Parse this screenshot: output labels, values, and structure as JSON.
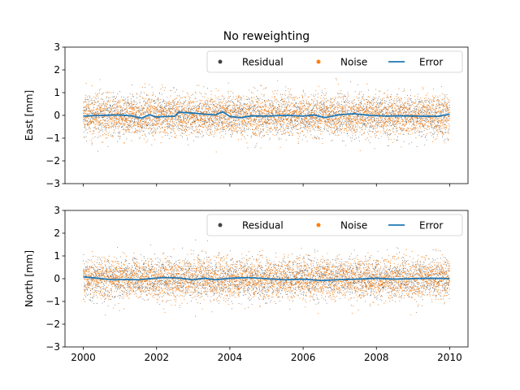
{
  "figure": {
    "title": "No reweighting"
  },
  "chart_data": [
    {
      "type": "scatter",
      "title": "No reweighting",
      "ylabel": "East [mm]",
      "xlabel": "",
      "xlim": [
        1999.5,
        2010.5
      ],
      "ylim": [
        -3,
        3
      ],
      "x_ticks": [
        "2000",
        "2002",
        "2004",
        "2006",
        "2008",
        "2010"
      ],
      "x_tick_values": [
        2000,
        2002,
        2004,
        2006,
        2008,
        2010
      ],
      "x_tick_labels_visible": false,
      "y_ticks": [
        "−3",
        "−2",
        "−1",
        "0",
        "1",
        "2",
        "3"
      ],
      "y_tick_values": [
        -3,
        -2,
        -1,
        0,
        1,
        2,
        3
      ],
      "grid": false,
      "legend": {
        "placement": "top-right",
        "columns": 3,
        "entries": [
          {
            "label": "Residual",
            "marker": "dot",
            "color": "#444444"
          },
          {
            "label": "Noise",
            "marker": "dot",
            "color": "#ff7f0e"
          },
          {
            "label": "Error",
            "marker": "line",
            "color": "#1f77b4"
          }
        ]
      },
      "series": [
        {
          "name": "Residual",
          "kind": "scatter",
          "color": "#444444",
          "x_range": [
            2000,
            2010
          ],
          "n_points": 3650,
          "spread_std": 0.45
        },
        {
          "name": "Noise",
          "kind": "scatter",
          "color": "#ff7f0e",
          "x_range": [
            2000,
            2010
          ],
          "n_points": 3650,
          "spread_std": 0.45
        },
        {
          "name": "Error",
          "kind": "line",
          "color": "#1f77b4",
          "x": [
            2000,
            2000.5,
            2001,
            2001.3,
            2001.6,
            2001.8,
            2002,
            2002.2,
            2002.5,
            2002.6,
            2003,
            2003.3,
            2003.6,
            2003.8,
            2004,
            2004.3,
            2004.6,
            2005,
            2005.5,
            2006,
            2006.3,
            2006.6,
            2007,
            2007.4,
            2007.8,
            2008.3,
            2008.8,
            2009.3,
            2009.7,
            2010
          ],
          "y": [
            -0.03,
            0.0,
            0.02,
            -0.02,
            -0.12,
            0.03,
            -0.07,
            -0.05,
            -0.04,
            0.14,
            0.1,
            0.05,
            0.02,
            0.16,
            -0.05,
            -0.1,
            -0.02,
            -0.03,
            0.0,
            -0.03,
            0.02,
            -0.1,
            0.03,
            0.07,
            0.0,
            -0.03,
            -0.02,
            -0.04,
            -0.04,
            0.06
          ]
        }
      ]
    },
    {
      "type": "scatter",
      "title": "",
      "ylabel": "North [mm]",
      "xlabel": "",
      "xlim": [
        1999.5,
        2010.5
      ],
      "ylim": [
        -3,
        3
      ],
      "x_ticks": [
        "2000",
        "2002",
        "2004",
        "2006",
        "2008",
        "2010"
      ],
      "x_tick_values": [
        2000,
        2002,
        2004,
        2006,
        2008,
        2010
      ],
      "x_tick_labels_visible": true,
      "y_ticks": [
        "−3",
        "−2",
        "−1",
        "0",
        "1",
        "2",
        "3"
      ],
      "y_tick_values": [
        -3,
        -2,
        -1,
        0,
        1,
        2,
        3
      ],
      "grid": false,
      "legend": {
        "placement": "top-right",
        "columns": 3,
        "entries": [
          {
            "label": "Residual",
            "marker": "dot",
            "color": "#444444"
          },
          {
            "label": "Noise",
            "marker": "dot",
            "color": "#ff7f0e"
          },
          {
            "label": "Error",
            "marker": "line",
            "color": "#1f77b4"
          }
        ]
      },
      "series": [
        {
          "name": "Residual",
          "kind": "scatter",
          "color": "#444444",
          "x_range": [
            2000,
            2010
          ],
          "n_points": 3650,
          "spread_std": 0.45
        },
        {
          "name": "Noise",
          "kind": "scatter",
          "color": "#ff7f0e",
          "x_range": [
            2000,
            2010
          ],
          "n_points": 3650,
          "spread_std": 0.45
        },
        {
          "name": "Error",
          "kind": "line",
          "color": "#1f77b4",
          "x": [
            2000,
            2000.4,
            2000.8,
            2001.2,
            2001.5,
            2001.8,
            2002.2,
            2002.6,
            2003,
            2003.3,
            2003.6,
            2004,
            2004.5,
            2005,
            2005.5,
            2006,
            2006.5,
            2007,
            2007.5,
            2008,
            2008.5,
            2009,
            2009.5,
            2010
          ],
          "y": [
            0.08,
            0.02,
            -0.05,
            -0.03,
            -0.05,
            0.0,
            0.05,
            0.03,
            -0.05,
            0.02,
            -0.05,
            0.02,
            0.05,
            0.0,
            -0.05,
            -0.02,
            -0.08,
            -0.04,
            -0.02,
            0.02,
            -0.02,
            0.0,
            0.02,
            0.0
          ]
        }
      ]
    }
  ]
}
